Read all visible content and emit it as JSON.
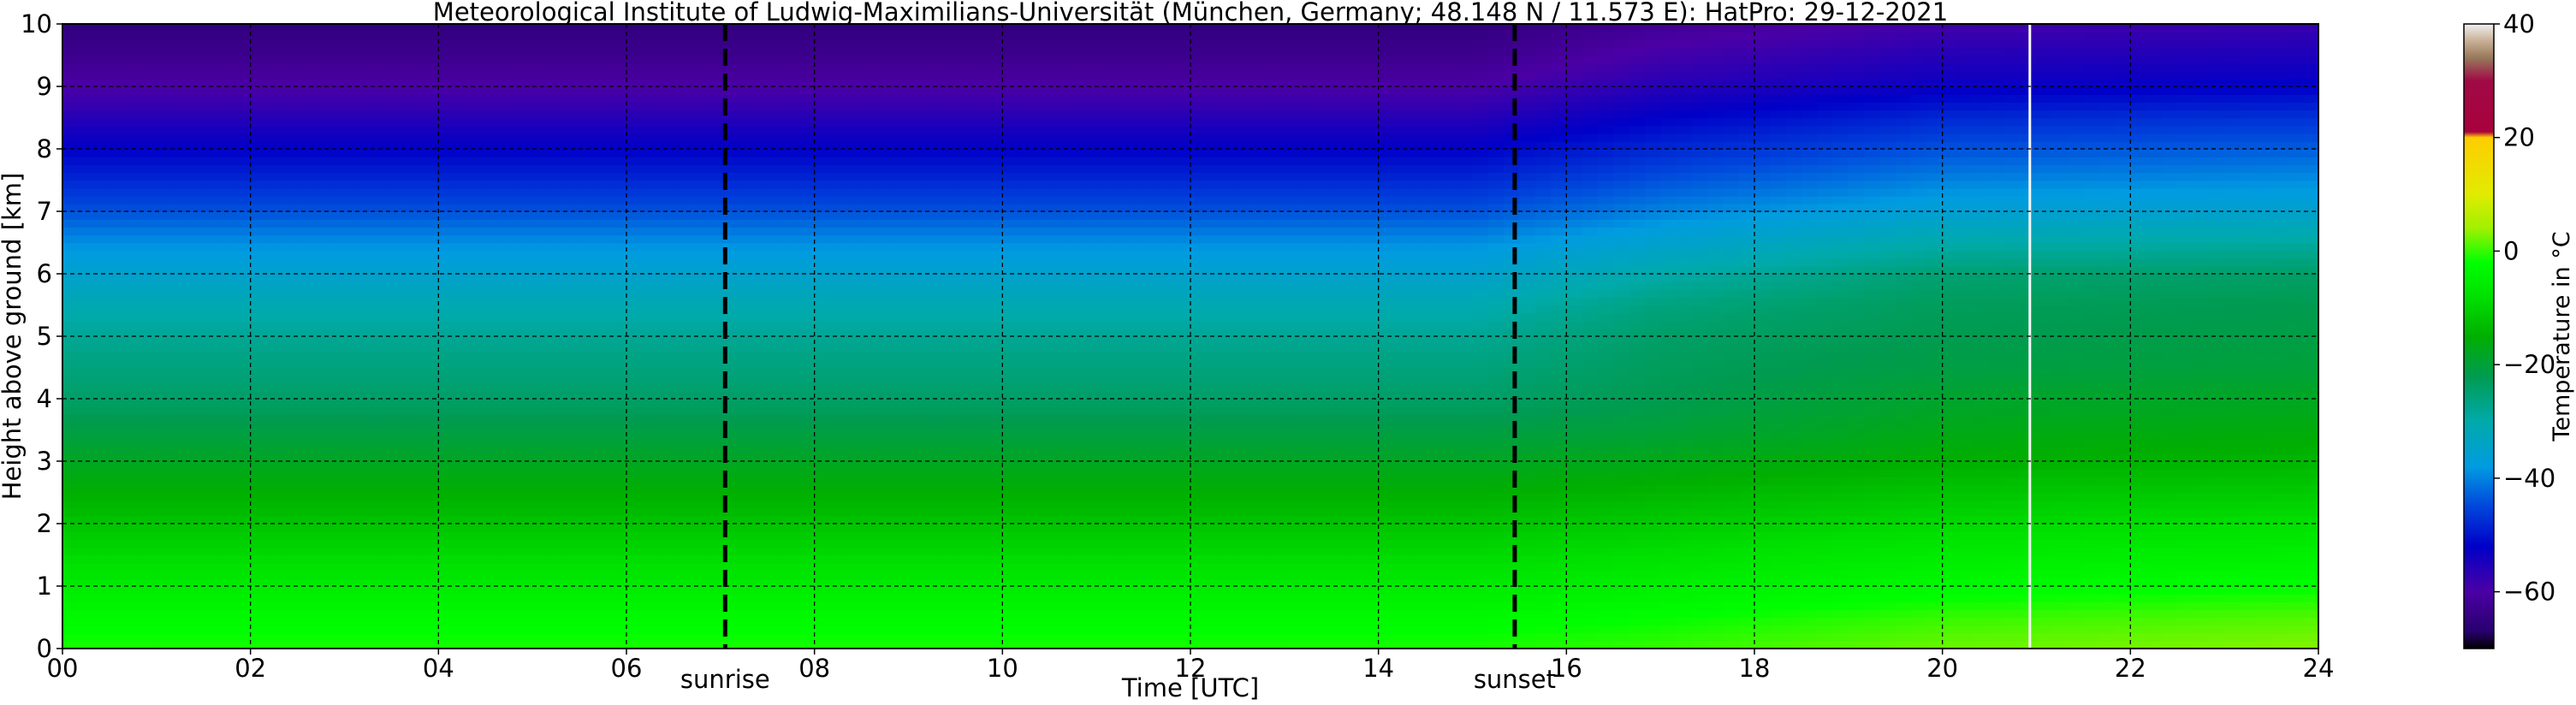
{
  "chart_data": {
    "type": "heatmap",
    "title": "Meteorological Institute of Ludwig-Maximilians-Universität (München, Germany; 48.148 N / 11.573 E):    HatPro: 29-12-2021",
    "xlabel": "Time [UTC]",
    "ylabel": "Height above ground [km]",
    "xlim": [
      0,
      24
    ],
    "ylim": [
      0,
      10
    ],
    "x_tick_labels": [
      "00",
      "02",
      "04",
      "06",
      "08",
      "10",
      "12",
      "14",
      "16",
      "18",
      "20",
      "22",
      "24"
    ],
    "y_tick_labels": [
      "0",
      "1",
      "2",
      "3",
      "4",
      "5",
      "6",
      "7",
      "8",
      "9",
      "10"
    ],
    "grid": true,
    "events": [
      {
        "label": "sunrise",
        "time": 7.05
      },
      {
        "label": "sunset",
        "time": 15.45
      }
    ],
    "colorbar": {
      "label": "Temperature in °C",
      "min": -70,
      "max": 40,
      "tick_labels": [
        "-60",
        "-40",
        "-20",
        "0",
        "20",
        "40"
      ],
      "tick_values": [
        -60,
        -40,
        -20,
        0,
        20,
        40
      ]
    },
    "height_km": [
      0,
      0.5,
      1,
      1.5,
      2,
      2.5,
      3,
      3.5,
      4,
      4.5,
      5,
      5.5,
      6,
      6.5,
      7,
      7.5,
      8,
      8.5,
      9,
      9.5,
      10
    ],
    "series": [
      {
        "time": 0,
        "values": [
          -1,
          -3,
          -6,
          -9,
          -12,
          -15,
          -18,
          -21,
          -24,
          -26,
          -28,
          -31,
          -35,
          -39,
          -44,
          -48,
          -52,
          -56,
          -60,
          -63,
          -65
        ]
      },
      {
        "time": 7,
        "values": [
          -1,
          -3,
          -6,
          -9,
          -12,
          -15,
          -18,
          -21,
          -24,
          -26,
          -28,
          -31,
          -35,
          -39,
          -44,
          -48,
          -52,
          -56,
          -60,
          -63,
          -65
        ]
      },
      {
        "time": 15,
        "values": [
          -1,
          -3,
          -6,
          -9,
          -12,
          -15,
          -18,
          -21,
          -24,
          -26,
          -28,
          -31,
          -35,
          -39,
          -44,
          -48,
          -52,
          -56,
          -60,
          -63,
          -65
        ]
      },
      {
        "time": 17,
        "values": [
          0,
          -2,
          -5,
          -8,
          -11,
          -14,
          -17,
          -20,
          -22,
          -23,
          -24,
          -26,
          -30,
          -35,
          -40,
          -44,
          -48,
          -52,
          -56,
          -59,
          -62
        ]
      },
      {
        "time": 20,
        "values": [
          2,
          0,
          -3,
          -6,
          -9,
          -12,
          -15,
          -17,
          -19,
          -21,
          -22,
          -23,
          -25,
          -30,
          -36,
          -40,
          -44,
          -48,
          -53,
          -56,
          -59
        ]
      },
      {
        "time": 24,
        "values": [
          3,
          1,
          -2,
          -5,
          -8,
          -11,
          -14,
          -16,
          -18,
          -20,
          -21,
          -22,
          -24,
          -29,
          -35,
          -39,
          -43,
          -47,
          -52,
          -55,
          -58
        ]
      }
    ],
    "missing_data_times": [
      20.93
    ],
    "colors": {
      "event_line": "#000000",
      "grid": "#000000",
      "missing": "#ffffff"
    }
  }
}
